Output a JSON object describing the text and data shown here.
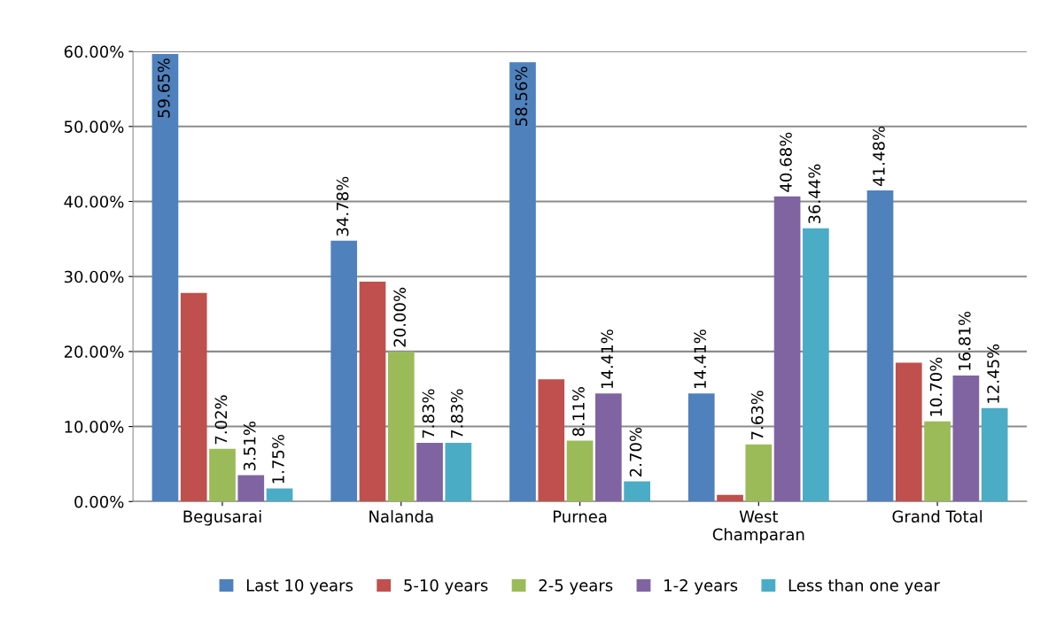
{
  "chart_data": {
    "type": "bar",
    "categories": [
      "Begusarai",
      "Nalanda",
      "Purnea",
      "West\nChamparan",
      "Grand Total"
    ],
    "series": [
      {
        "name": "Last 10 years",
        "color": "#4f81bd",
        "values": [
          59.65,
          34.78,
          58.56,
          14.41,
          41.48
        ],
        "value_labels": [
          "59.65%",
          "34.78%",
          "58.56%",
          "14.41%",
          "41.48%"
        ]
      },
      {
        "name": "5-10 years",
        "color": "#c0504d",
        "values": [
          27.8,
          29.3,
          16.3,
          0.9,
          18.5
        ],
        "value_labels": [
          null,
          null,
          null,
          null,
          null
        ]
      },
      {
        "name": "2-5 years",
        "color": "#9bbb59",
        "values": [
          7.02,
          20.0,
          8.11,
          7.63,
          10.7
        ],
        "value_labels": [
          "7.02%",
          "20.00%",
          "8.11%",
          "7.63%",
          "10.70%"
        ]
      },
      {
        "name": "1-2 years",
        "color": "#8064a2",
        "values": [
          3.51,
          7.83,
          14.41,
          40.68,
          16.81
        ],
        "value_labels": [
          "3.51%",
          "7.83%",
          "14.41%",
          "40.68%",
          "16.81%"
        ]
      },
      {
        "name": "Less than one year",
        "color": "#4bacc6",
        "values": [
          1.75,
          7.83,
          2.7,
          36.44,
          12.45
        ],
        "value_labels": [
          "1.75%",
          "7.83%",
          "2.70%",
          "36.44%",
          "12.45%"
        ]
      }
    ],
    "ylim": [
      0,
      60
    ],
    "yticks": [
      {
        "value": 0,
        "label": "0.00%"
      },
      {
        "value": 10,
        "label": "10.00%"
      },
      {
        "value": 20,
        "label": "20.00%"
      },
      {
        "value": 30,
        "label": "30.00%"
      },
      {
        "value": 40,
        "label": "40.00%"
      },
      {
        "value": 50,
        "label": "50.00%"
      },
      {
        "value": 60,
        "label": "60.00%"
      }
    ],
    "grid": "y",
    "legend": "bottom"
  }
}
